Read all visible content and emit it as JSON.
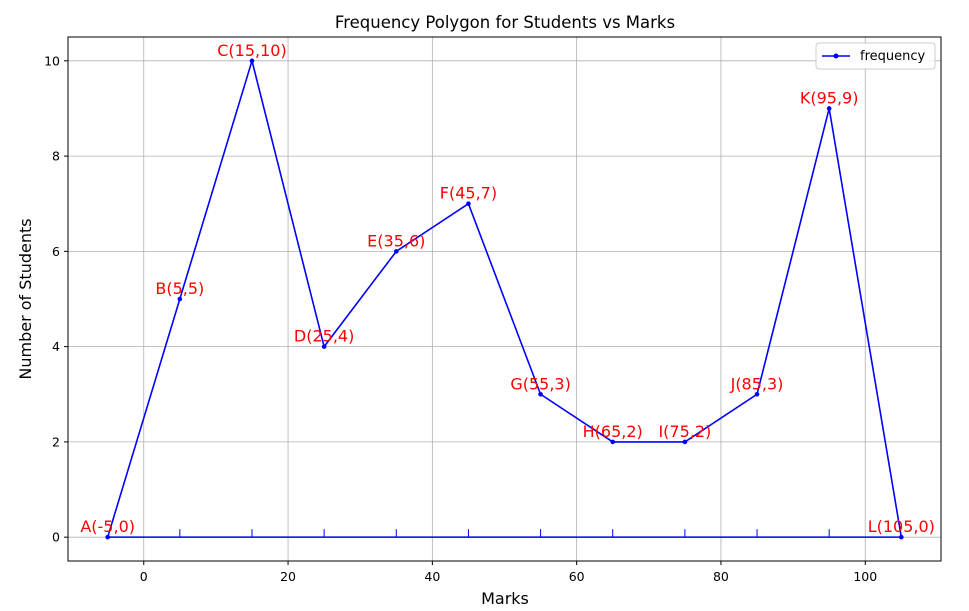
{
  "chart_data": {
    "type": "line",
    "title": "Frequency Polygon for Students vs Marks",
    "xlabel": "Marks",
    "ylabel": "Number of Students",
    "xlim": [
      -10.5,
      110.5
    ],
    "ylim": [
      -0.5,
      10.5
    ],
    "xticks": [
      0,
      20,
      40,
      60,
      80,
      100
    ],
    "yticks": [
      0,
      2,
      4,
      6,
      8,
      10
    ],
    "grid": true,
    "legend_position": "top-right",
    "series": [
      {
        "name": "frequency",
        "color": "#0000ff",
        "x": [
          -5,
          5,
          15,
          25,
          35,
          45,
          55,
          65,
          75,
          85,
          95,
          105
        ],
        "y": [
          0,
          5,
          10,
          4,
          6,
          7,
          3,
          2,
          2,
          3,
          9,
          0
        ]
      }
    ],
    "annotations": [
      {
        "text": "A(-5,0)",
        "x": -5,
        "y": 0
      },
      {
        "text": "B(5,5)",
        "x": 5,
        "y": 5
      },
      {
        "text": "C(15,10)",
        "x": 15,
        "y": 10
      },
      {
        "text": "D(25,4)",
        "x": 25,
        "y": 4
      },
      {
        "text": "E(35,6)",
        "x": 35,
        "y": 6
      },
      {
        "text": "F(45,7)",
        "x": 45,
        "y": 7
      },
      {
        "text": "G(55,3)",
        "x": 55,
        "y": 3
      },
      {
        "text": "H(65,2)",
        "x": 65,
        "y": 2
      },
      {
        "text": "I(75,2)",
        "x": 75,
        "y": 2
      },
      {
        "text": "J(85,3)",
        "x": 85,
        "y": 3
      },
      {
        "text": "K(95,9)",
        "x": 95,
        "y": 9
      },
      {
        "text": "L(105,0)",
        "x": 105,
        "y": 0
      }
    ],
    "annotation_color": "#ff0000",
    "baseline": {
      "y": 0,
      "from_x": -5,
      "to_x": 105,
      "tick_x": [
        5,
        15,
        25,
        35,
        45,
        55,
        65,
        75,
        85,
        95
      ],
      "color": "#0000ff"
    }
  }
}
